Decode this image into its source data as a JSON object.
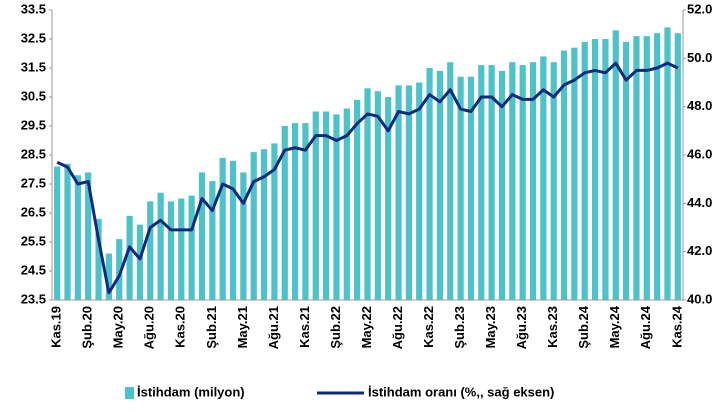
{
  "chart_data": {
    "type": "bar-line",
    "categories": [
      "Kas.19",
      null,
      null,
      "Şub.20",
      null,
      null,
      "May.20",
      null,
      null,
      "Ağu.20",
      null,
      null,
      "Kas.20",
      null,
      null,
      "Şub.21",
      null,
      null,
      "May.21",
      null,
      null,
      "Ağu.21",
      null,
      null,
      "Kas.21",
      null,
      null,
      "Şub.22",
      null,
      null,
      "May.22",
      null,
      null,
      "Ağu.22",
      null,
      null,
      "Kas.22",
      null,
      null,
      "Şub.23",
      null,
      null,
      "May.23",
      null,
      null,
      "Ağu.23",
      null,
      null,
      "Kas.23",
      null,
      null,
      "Şub.24",
      null,
      null,
      "May.24",
      null,
      null,
      "Ağu.24",
      null,
      null,
      "Kas.24"
    ],
    "series": [
      {
        "name": "İstihdam (milyon)",
        "type": "bar",
        "color": "#4dc2c8",
        "values": [
          28.1,
          28.2,
          27.8,
          27.9,
          26.3,
          25.1,
          25.6,
          26.4,
          26.1,
          26.9,
          27.2,
          26.9,
          27.0,
          27.1,
          27.9,
          27.6,
          28.4,
          28.3,
          27.9,
          28.6,
          28.7,
          28.9,
          29.5,
          29.6,
          29.6,
          30.0,
          30.0,
          29.9,
          30.1,
          30.4,
          30.8,
          30.7,
          30.5,
          30.9,
          30.9,
          31.0,
          31.5,
          31.4,
          31.7,
          31.2,
          31.2,
          31.6,
          31.6,
          31.4,
          31.7,
          31.6,
          31.7,
          31.9,
          31.7,
          32.1,
          32.2,
          32.4,
          32.5,
          32.5,
          32.8,
          32.4,
          32.6,
          32.6,
          32.7,
          32.9,
          32.7
        ]
      },
      {
        "name": "İstihdam oranı (%,, sağ eksen)",
        "type": "line",
        "axis": "y2",
        "color": "#0d2b7c",
        "values": [
          45.7,
          45.5,
          44.8,
          44.9,
          42.5,
          40.3,
          41.0,
          42.2,
          41.7,
          43.0,
          43.3,
          42.9,
          42.9,
          42.9,
          44.2,
          43.7,
          44.8,
          44.6,
          44.0,
          44.9,
          45.1,
          45.4,
          46.2,
          46.3,
          46.2,
          46.8,
          46.8,
          46.6,
          46.8,
          47.3,
          47.7,
          47.6,
          47.0,
          47.8,
          47.7,
          47.9,
          48.5,
          48.2,
          48.7,
          47.9,
          47.8,
          48.4,
          48.4,
          48.0,
          48.5,
          48.3,
          48.3,
          48.7,
          48.4,
          48.9,
          49.1,
          49.4,
          49.5,
          49.4,
          49.8,
          49.1,
          49.5,
          49.5,
          49.6,
          49.8,
          49.6
        ]
      }
    ],
    "ylim": [
      23.5,
      33.5
    ],
    "yticks": [
      23.5,
      24.5,
      25.5,
      26.5,
      27.5,
      28.5,
      29.5,
      30.5,
      31.5,
      32.5,
      33.5
    ],
    "y2lim": [
      40,
      52
    ],
    "y2ticks": [
      {
        "value": 40,
        "label": "40.0"
      },
      {
        "value": 42,
        "label": "42.0"
      },
      {
        "value": 44,
        "label": "44.0"
      },
      {
        "value": 46,
        "label": "46.0"
      },
      {
        "value": 48,
        "label": "48.0"
      },
      {
        "value": 50,
        "label": "50.0"
      },
      {
        "value": 52,
        "label": "52.0"
      }
    ],
    "legend": "bottom"
  }
}
